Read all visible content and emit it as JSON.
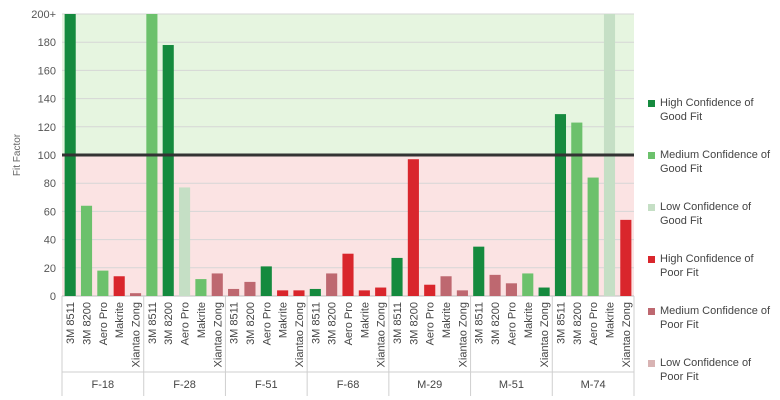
{
  "chart_data": {
    "type": "bar",
    "ylabel": "Fit Factor",
    "ylim": [
      0,
      200
    ],
    "yticks": [
      "0",
      "20",
      "40",
      "60",
      "80",
      "100",
      "120",
      "140",
      "160",
      "180",
      "200+"
    ],
    "threshold": 100,
    "grid": true,
    "legend_position": "right",
    "groups": [
      "F-18",
      "F-28",
      "F-51",
      "F-68",
      "M-29",
      "M-51",
      "M-74"
    ],
    "categories": [
      "3M 8511",
      "3M 8200",
      "Aero Pro",
      "Makrite",
      "Xiantao Zong"
    ],
    "legend": [
      {
        "key": "high_good",
        "label": [
          "High Confidence of",
          "Good Fit"
        ],
        "color": "#158a3e"
      },
      {
        "key": "med_good",
        "label": [
          "Medium Confidence of",
          "Good Fit"
        ],
        "color": "#6cc16c"
      },
      {
        "key": "low_good",
        "label": [
          "Low Confidence of",
          "Good Fit"
        ],
        "color": "#c5dfc5"
      },
      {
        "key": "high_poor",
        "label": [
          "High Confidence of",
          "Poor Fit"
        ],
        "color": "#d9262c"
      },
      {
        "key": "med_poor",
        "label": [
          "Medium Confidence of",
          "Poor Fit"
        ],
        "color": "#be6870"
      },
      {
        "key": "low_poor",
        "label": [
          "Low Confidence of",
          "Poor Fit"
        ],
        "color": "#d8b3b3"
      }
    ],
    "bars": [
      {
        "group": "F-18",
        "category": "3M 8511",
        "value": 200,
        "confidence": "high_good"
      },
      {
        "group": "F-18",
        "category": "3M 8200",
        "value": 64,
        "confidence": "med_good"
      },
      {
        "group": "F-18",
        "category": "Aero Pro",
        "value": 18,
        "confidence": "med_good"
      },
      {
        "group": "F-18",
        "category": "Makrite",
        "value": 14,
        "confidence": "high_poor"
      },
      {
        "group": "F-18",
        "category": "Xiantao Zong",
        "value": 2,
        "confidence": "med_poor"
      },
      {
        "group": "F-28",
        "category": "3M 8511",
        "value": 200,
        "confidence": "med_good"
      },
      {
        "group": "F-28",
        "category": "3M 8200",
        "value": 178,
        "confidence": "high_good"
      },
      {
        "group": "F-28",
        "category": "Aero Pro",
        "value": 77,
        "confidence": "low_good"
      },
      {
        "group": "F-28",
        "category": "Makrite",
        "value": 12,
        "confidence": "med_good"
      },
      {
        "group": "F-28",
        "category": "Xiantao Zong",
        "value": 16,
        "confidence": "med_poor"
      },
      {
        "group": "F-51",
        "category": "3M 8511",
        "value": 5,
        "confidence": "med_poor"
      },
      {
        "group": "F-51",
        "category": "3M 8200",
        "value": 10,
        "confidence": "med_poor"
      },
      {
        "group": "F-51",
        "category": "Aero Pro",
        "value": 21,
        "confidence": "high_good"
      },
      {
        "group": "F-51",
        "category": "Makrite",
        "value": 4,
        "confidence": "high_poor"
      },
      {
        "group": "F-51",
        "category": "Xiantao Zong",
        "value": 4,
        "confidence": "high_poor"
      },
      {
        "group": "F-68",
        "category": "3M 8511",
        "value": 5,
        "confidence": "high_good"
      },
      {
        "group": "F-68",
        "category": "3M 8200",
        "value": 16,
        "confidence": "med_poor"
      },
      {
        "group": "F-68",
        "category": "Aero Pro",
        "value": 30,
        "confidence": "high_poor"
      },
      {
        "group": "F-68",
        "category": "Makrite",
        "value": 4,
        "confidence": "high_poor"
      },
      {
        "group": "F-68",
        "category": "Xiantao Zong",
        "value": 6,
        "confidence": "high_poor"
      },
      {
        "group": "M-29",
        "category": "3M 8511",
        "value": 27,
        "confidence": "high_good"
      },
      {
        "group": "M-29",
        "category": "3M 8200",
        "value": 97,
        "confidence": "high_poor"
      },
      {
        "group": "M-29",
        "category": "Aero Pro",
        "value": 8,
        "confidence": "high_poor"
      },
      {
        "group": "M-29",
        "category": "Makrite",
        "value": 14,
        "confidence": "med_poor"
      },
      {
        "group": "M-29",
        "category": "Xiantao Zong",
        "value": 4,
        "confidence": "med_poor"
      },
      {
        "group": "M-51",
        "category": "3M 8511",
        "value": 35,
        "confidence": "high_good"
      },
      {
        "group": "M-51",
        "category": "3M 8200",
        "value": 15,
        "confidence": "med_poor"
      },
      {
        "group": "M-51",
        "category": "Aero Pro",
        "value": 9,
        "confidence": "med_poor"
      },
      {
        "group": "M-51",
        "category": "Makrite",
        "value": 16,
        "confidence": "med_good"
      },
      {
        "group": "M-51",
        "category": "Xiantao Zong",
        "value": 6,
        "confidence": "high_good"
      },
      {
        "group": "M-74",
        "category": "3M 8511",
        "value": 129,
        "confidence": "high_good"
      },
      {
        "group": "M-74",
        "category": "3M 8200",
        "value": 123,
        "confidence": "med_good"
      },
      {
        "group": "M-74",
        "category": "Aero Pro",
        "value": 84,
        "confidence": "med_good"
      },
      {
        "group": "M-74",
        "category": "Makrite",
        "value": 200,
        "confidence": "low_good"
      },
      {
        "group": "M-74",
        "category": "Xiantao Zong",
        "value": 54,
        "confidence": "high_poor"
      }
    ]
  }
}
